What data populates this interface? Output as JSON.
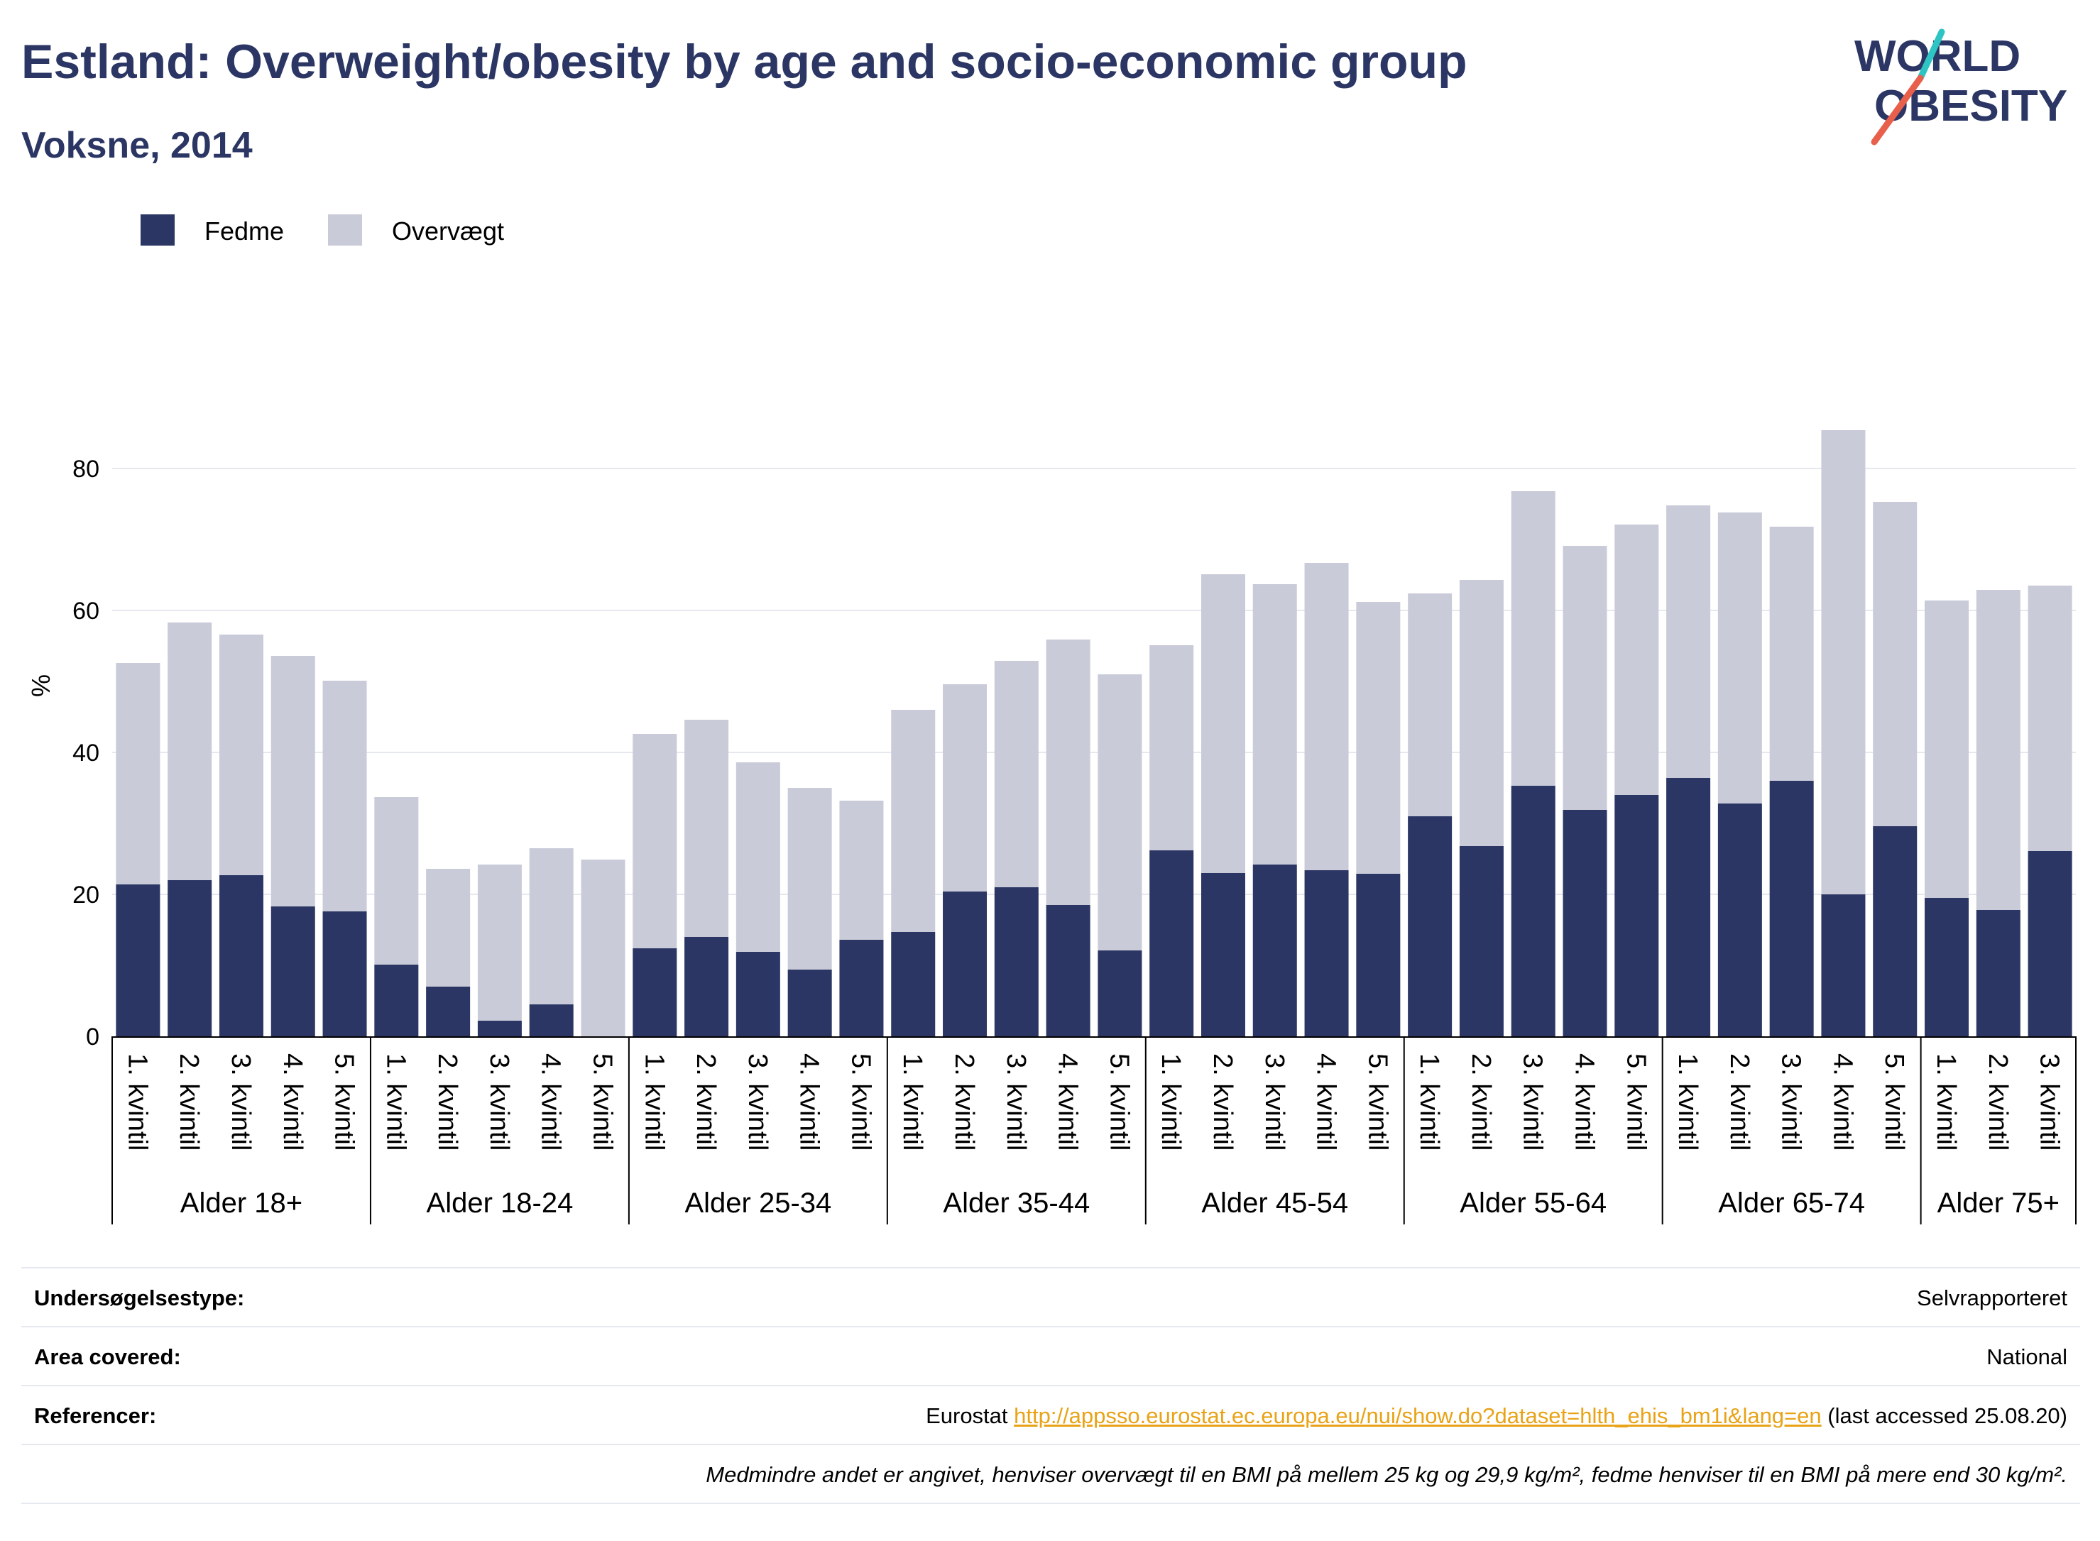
{
  "header": {
    "title": "Estland: Overweight/obesity by age and socio-economic group",
    "subtitle": "Voksne, 2014"
  },
  "logo": {
    "line1": "WORLD",
    "line2": "OBESITY",
    "accent_colors": [
      "#2ec4c4",
      "#e8604c"
    ],
    "text_color": "#2b3664"
  },
  "colors": {
    "obesity": "#2b3664",
    "overweight": "#c9cbd8",
    "grid": "#e6e8ef",
    "link": "#e8a317"
  },
  "chart_data": {
    "type": "bar",
    "stacked": true,
    "ylabel": "%",
    "ylim": [
      0,
      90
    ],
    "yticks": [
      0,
      20,
      40,
      60,
      80
    ],
    "grid": true,
    "legend_position": "top-left",
    "groups": [
      {
        "label": "Alder 18+",
        "categories": [
          "1. kvintil",
          "2. kvintil",
          "3. kvintil",
          "4. kvintil",
          "5. kvintil"
        ]
      },
      {
        "label": "Alder 18-24",
        "categories": [
          "1. kvintil",
          "2. kvintil",
          "3. kvintil",
          "4. kvintil",
          "5. kvintil"
        ]
      },
      {
        "label": "Alder 25-34",
        "categories": [
          "1. kvintil",
          "2. kvintil",
          "3. kvintil",
          "4. kvintil",
          "5. kvintil"
        ]
      },
      {
        "label": "Alder 35-44",
        "categories": [
          "1. kvintil",
          "2. kvintil",
          "3. kvintil",
          "4. kvintil",
          "5. kvintil"
        ]
      },
      {
        "label": "Alder 45-54",
        "categories": [
          "1. kvintil",
          "2. kvintil",
          "3. kvintil",
          "4. kvintil",
          "5. kvintil"
        ]
      },
      {
        "label": "Alder 55-64",
        "categories": [
          "1. kvintil",
          "2. kvintil",
          "3. kvintil",
          "4. kvintil",
          "5. kvintil"
        ]
      },
      {
        "label": "Alder 65-74",
        "categories": [
          "1. kvintil",
          "2. kvintil",
          "3. kvintil",
          "4. kvintil",
          "5. kvintil"
        ]
      },
      {
        "label": "Alder 75+",
        "categories": [
          "1. kvintil",
          "2. kvintil",
          "3. kvintil"
        ]
      }
    ],
    "series": [
      {
        "name": "Fedme",
        "values": [
          21.4,
          22.0,
          22.7,
          18.3,
          17.6,
          10.1,
          7.0,
          2.2,
          4.5,
          0,
          12.4,
          14.0,
          11.9,
          9.4,
          13.6,
          14.7,
          20.4,
          21.0,
          18.5,
          12.1,
          26.2,
          23.0,
          24.2,
          23.4,
          22.9,
          31.0,
          26.8,
          35.3,
          31.9,
          34.0,
          36.4,
          32.8,
          36.0,
          20.0,
          29.6,
          19.5,
          17.8,
          26.1
        ]
      },
      {
        "name": "Overvægt",
        "values": [
          31.2,
          36.3,
          33.9,
          35.3,
          32.5,
          23.6,
          16.6,
          22.0,
          22.0,
          24.9,
          30.2,
          30.6,
          26.7,
          25.6,
          19.6,
          31.3,
          29.2,
          31.9,
          37.4,
          38.9,
          28.9,
          42.1,
          39.5,
          43.3,
          38.3,
          31.4,
          37.5,
          41.5,
          37.2,
          38.1,
          38.4,
          41.0,
          35.8,
          65.4,
          45.7,
          41.9,
          45.1,
          37.4
        ]
      }
    ]
  },
  "info": {
    "rows": [
      {
        "label": "Undersøgelsestype:",
        "value": "Selvrapporteret"
      },
      {
        "label": "Area covered:",
        "value": "National"
      },
      {
        "label": "Referencer:",
        "value_prefix": "Eurostat ",
        "link": "http://appsso.eurostat.ec.europa.eu/nui/show.do?dataset=hlth_ehis_bm1i&lang=en",
        "value_suffix": " (last accessed 25.08.20)"
      }
    ],
    "note": "Medmindre andet er angivet, henviser overvægt til en BMI på mellem 25 kg og 29,9 kg/m², fedme henviser til en BMI på mere end 30 kg/m²."
  }
}
